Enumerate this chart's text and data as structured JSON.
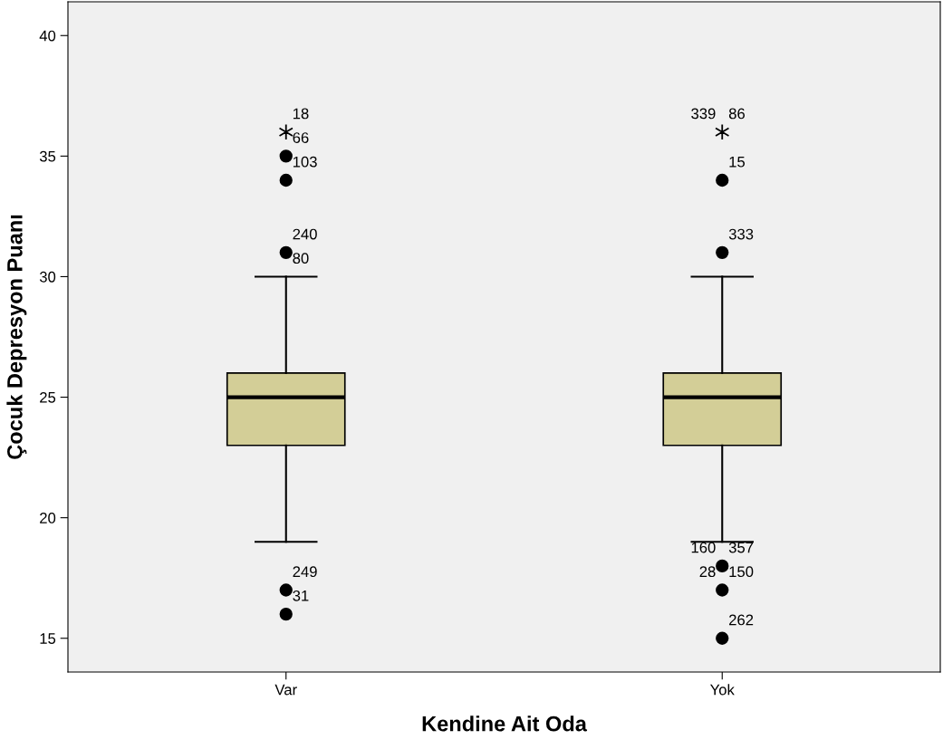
{
  "chart_data": {
    "type": "box",
    "xlabel": "Kendine Ait Oda",
    "ylabel": "Çocuk Depresyon Puanı",
    "categories": [
      "Var",
      "Yok"
    ],
    "series": [
      {
        "color": "#d3ce97",
        "boxes": [
          {
            "low": 19,
            "q1": 23,
            "median": 25,
            "q3": 26,
            "high": 30
          },
          {
            "low": 19,
            "q1": 23,
            "median": 25,
            "q3": 26,
            "high": 30
          }
        ]
      },
      {
        "type": "scatter",
        "marker": "circle",
        "color": "#000000",
        "x": [
          "Var",
          "Var",
          "Var",
          "Var",
          "Var",
          "Yok",
          "Yok",
          "Yok",
          "Yok",
          "Yok"
        ],
        "values": [
          35,
          34,
          31,
          17,
          16,
          34,
          31,
          18,
          17,
          15
        ]
      },
      {
        "type": "scatter",
        "marker": "cross",
        "color": "#000000",
        "x": [
          "Var",
          "Yok"
        ],
        "values": [
          36,
          36
        ]
      }
    ],
    "ylim": [
      13.6,
      41.4
    ],
    "yticks": [
      15,
      20,
      25,
      30,
      35,
      40
    ],
    "grid": false,
    "annotations": [
      {
        "text": "18",
        "x": "Var",
        "y": 36
      },
      {
        "text": "66",
        "x": "Var",
        "y": 35
      },
      {
        "text": "103",
        "x": "Var",
        "y": 34
      },
      {
        "text": "240",
        "x": "Var",
        "y": 31
      },
      {
        "text": "80",
        "x": "Var",
        "y": 30
      },
      {
        "text": "249",
        "x": "Var",
        "y": 17
      },
      {
        "text": "31",
        "x": "Var",
        "y": 16
      },
      {
        "text": "339",
        "x": "Yok",
        "y": 36
      },
      {
        "text": "86",
        "x": "Yok",
        "y": 36
      },
      {
        "text": "15",
        "x": "Yok",
        "y": 34
      },
      {
        "text": "333",
        "x": "Yok",
        "y": 31
      },
      {
        "text": "160",
        "x": "Yok",
        "y": 18
      },
      {
        "text": "357",
        "x": "Yok",
        "y": 18
      },
      {
        "text": "28",
        "x": "Yok",
        "y": 17
      },
      {
        "text": "150",
        "x": "Yok",
        "y": 17
      },
      {
        "text": "262",
        "x": "Yok",
        "y": 15
      }
    ]
  }
}
